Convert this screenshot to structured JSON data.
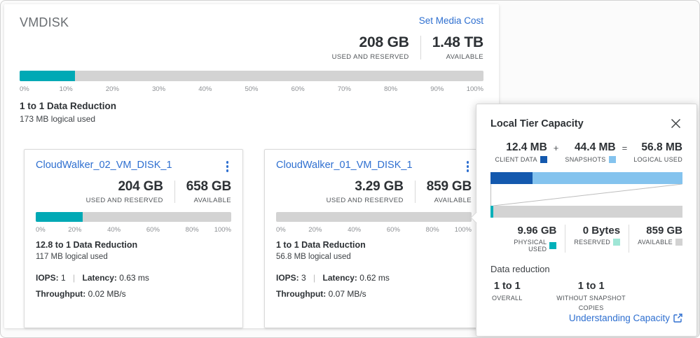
{
  "colors": {
    "used_teal": "#00a9b5",
    "bar_gray": "#d3d3d3",
    "client_data_blue": "#1459ae",
    "snapshots_blue": "#84c3ee",
    "physical_used_teal": "#00b0b9",
    "reserved_mint": "#9fe6d6",
    "available_gray": "#d2d2d2",
    "link_blue": "#2e6fd0"
  },
  "panel": {
    "title": "VMDISK",
    "action_link": "Set Media Cost",
    "used_value": "208 GB",
    "used_label": "USED AND RESERVED",
    "available_value": "1.48 TB",
    "available_label": "AVAILABLE",
    "bar_fill_percent": 12,
    "ticks": [
      "0%",
      "10%",
      "20%",
      "30%",
      "40%",
      "50%",
      "60%",
      "70%",
      "80%",
      "90%",
      "100%"
    ],
    "data_reduction": "1 to 1 Data Reduction",
    "logical_used": "173 MB logical used"
  },
  "cards": [
    {
      "title": "CloudWalker_02_VM_DISK_1",
      "used_value": "204 GB",
      "used_label": "USED AND RESERVED",
      "available_value": "658 GB",
      "available_label": "AVAILABLE",
      "bar_fill_percent": 24,
      "ticks": [
        "0%",
        "20%",
        "40%",
        "60%",
        "80%",
        "100%"
      ],
      "data_reduction": "12.8 to 1 Data Reduction",
      "logical_used": "117 MB logical used",
      "iops_label": "IOPS:",
      "iops_value": "1",
      "separator": "|",
      "latency_label": "Latency:",
      "latency_value": "0.63 ms",
      "throughput_label": "Throughput:",
      "throughput_value": "0.02 MB/s"
    },
    {
      "title": "CloudWalker_01_VM_DISK_1",
      "used_value": "3.29 GB",
      "used_label": "USED AND RESERVED",
      "available_value": "859 GB",
      "available_label": "AVAILABLE",
      "bar_fill_percent": 0,
      "ticks": [
        "0%",
        "20%",
        "40%",
        "60%",
        "80%",
        "100%"
      ],
      "data_reduction": "1 to 1 Data Reduction",
      "logical_used": "56.8 MB logical used",
      "iops_label": "IOPS:",
      "iops_value": "3",
      "separator": "|",
      "latency_label": "Latency:",
      "latency_value": "0.62 ms",
      "throughput_label": "Throughput:",
      "throughput_value": "0.07 MB/s"
    }
  ],
  "popup": {
    "title": "Local Tier Capacity",
    "client_value": "12.4 MB",
    "client_label": "CLIENT DATA",
    "plus": "+",
    "snapshots_value": "44.4 MB",
    "snapshots_label": "SNAPSHOTS",
    "equals": "=",
    "logical_value": "56.8 MB",
    "logical_label": "LOGICAL USED",
    "client_percent": 21.8,
    "physical_value": "9.96 GB",
    "physical_label": "PHYSICAL USED",
    "reserved_value": "0 Bytes",
    "reserved_label": "RESERVED",
    "available_value": "859 GB",
    "available_label": "AVAILABLE",
    "physical_percent": 1.3,
    "data_reduction_heading": "Data reduction",
    "overall_value": "1 to 1",
    "overall_label": "OVERALL",
    "without_snapshot_value": "1 to 1",
    "without_snapshot_label": "WITHOUT SNAPSHOT COPIES",
    "link_label": "Understanding Capacity"
  }
}
